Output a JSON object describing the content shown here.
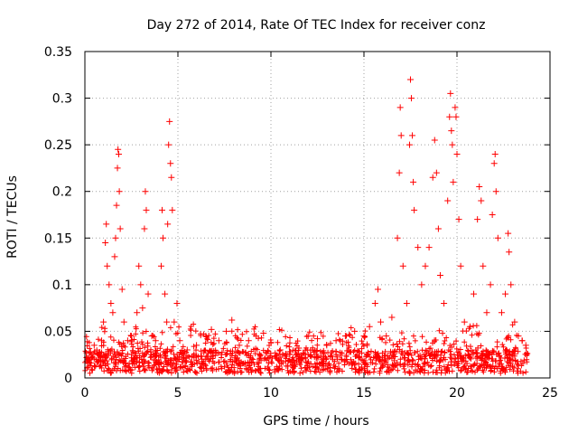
{
  "chart_data": {
    "type": "scatter",
    "title": "Day 272 of 2014, Rate Of TEC Index for receiver conz",
    "xlabel": "GPS time / hours",
    "ylabel": "ROTI / TECUs",
    "xlim": [
      0,
      25
    ],
    "ylim": [
      0,
      0.35
    ],
    "x_ticks": [
      "0",
      "5",
      "10",
      "15",
      "20",
      "25"
    ],
    "y_ticks": [
      "0",
      "0.05",
      "0.1",
      "0.15",
      "0.2",
      "0.25",
      "0.3",
      "0.35"
    ],
    "x_tick_values": [
      0,
      5,
      10,
      15,
      20,
      25
    ],
    "y_tick_values": [
      0,
      0.05,
      0.1,
      0.15,
      0.2,
      0.25,
      0.3,
      0.35
    ],
    "grid": true,
    "marker": "+",
    "color": "#ff0000",
    "series": [
      {
        "points": [
          [
            0.1,
            0.018
          ],
          [
            0.3,
            0.028
          ],
          [
            0.5,
            0.035
          ],
          [
            0.7,
            0.025
          ],
          [
            0.9,
            0.04
          ],
          [
            1.0,
            0.06
          ],
          [
            1.1,
            0.145
          ],
          [
            1.15,
            0.165
          ],
          [
            1.2,
            0.12
          ],
          [
            1.3,
            0.1
          ],
          [
            1.4,
            0.08
          ],
          [
            1.5,
            0.07
          ],
          [
            1.6,
            0.13
          ],
          [
            1.65,
            0.15
          ],
          [
            1.7,
            0.185
          ],
          [
            1.75,
            0.225
          ],
          [
            1.78,
            0.245
          ],
          [
            1.82,
            0.24
          ],
          [
            1.85,
            0.2
          ],
          [
            1.9,
            0.16
          ],
          [
            2.0,
            0.095
          ],
          [
            2.1,
            0.06
          ],
          [
            2.3,
            0.04
          ],
          [
            2.5,
            0.045
          ],
          [
            2.8,
            0.07
          ],
          [
            2.9,
            0.12
          ],
          [
            3.0,
            0.1
          ],
          [
            3.1,
            0.075
          ],
          [
            3.2,
            0.16
          ],
          [
            3.25,
            0.2
          ],
          [
            3.3,
            0.18
          ],
          [
            3.4,
            0.09
          ],
          [
            3.6,
            0.045
          ],
          [
            3.8,
            0.04
          ],
          [
            4.1,
            0.12
          ],
          [
            4.15,
            0.18
          ],
          [
            4.2,
            0.15
          ],
          [
            4.3,
            0.09
          ],
          [
            4.4,
            0.06
          ],
          [
            4.45,
            0.165
          ],
          [
            4.5,
            0.25
          ],
          [
            4.55,
            0.275
          ],
          [
            4.6,
            0.23
          ],
          [
            4.65,
            0.215
          ],
          [
            4.7,
            0.18
          ],
          [
            4.8,
            0.06
          ],
          [
            4.95,
            0.08
          ],
          [
            5.1,
            0.04
          ],
          [
            5.5,
            0.03
          ],
          [
            6.0,
            0.035
          ],
          [
            6.5,
            0.045
          ],
          [
            6.8,
            0.052
          ],
          [
            7.2,
            0.04
          ],
          [
            7.6,
            0.05
          ],
          [
            7.9,
            0.062
          ],
          [
            8.3,
            0.035
          ],
          [
            8.8,
            0.04
          ],
          [
            9.2,
            0.045
          ],
          [
            9.6,
            0.048
          ],
          [
            10.0,
            0.038
          ],
          [
            10.5,
            0.03
          ],
          [
            11.0,
            0.028
          ],
          [
            11.5,
            0.032
          ],
          [
            12.0,
            0.045
          ],
          [
            12.5,
            0.042
          ],
          [
            13.0,
            0.035
          ],
          [
            13.5,
            0.04
          ],
          [
            14.0,
            0.045
          ],
          [
            14.5,
            0.05
          ],
          [
            15.0,
            0.045
          ],
          [
            15.3,
            0.055
          ],
          [
            15.6,
            0.08
          ],
          [
            15.75,
            0.095
          ],
          [
            15.9,
            0.06
          ],
          [
            16.2,
            0.045
          ],
          [
            16.5,
            0.065
          ],
          [
            16.8,
            0.15
          ],
          [
            16.9,
            0.22
          ],
          [
            16.95,
            0.29
          ],
          [
            17.0,
            0.26
          ],
          [
            17.1,
            0.12
          ],
          [
            17.3,
            0.08
          ],
          [
            17.45,
            0.25
          ],
          [
            17.5,
            0.32
          ],
          [
            17.55,
            0.3
          ],
          [
            17.6,
            0.26
          ],
          [
            17.65,
            0.21
          ],
          [
            17.7,
            0.18
          ],
          [
            17.9,
            0.14
          ],
          [
            18.1,
            0.1
          ],
          [
            18.3,
            0.12
          ],
          [
            18.5,
            0.14
          ],
          [
            18.7,
            0.215
          ],
          [
            18.8,
            0.255
          ],
          [
            18.9,
            0.22
          ],
          [
            19.0,
            0.16
          ],
          [
            19.1,
            0.11
          ],
          [
            19.3,
            0.08
          ],
          [
            19.5,
            0.19
          ],
          [
            19.6,
            0.28
          ],
          [
            19.65,
            0.305
          ],
          [
            19.7,
            0.265
          ],
          [
            19.75,
            0.25
          ],
          [
            19.8,
            0.21
          ],
          [
            19.9,
            0.29
          ],
          [
            19.95,
            0.28
          ],
          [
            20.0,
            0.24
          ],
          [
            20.1,
            0.17
          ],
          [
            20.2,
            0.12
          ],
          [
            20.4,
            0.06
          ],
          [
            20.7,
            0.055
          ],
          [
            20.9,
            0.09
          ],
          [
            21.1,
            0.17
          ],
          [
            21.2,
            0.205
          ],
          [
            21.3,
            0.19
          ],
          [
            21.4,
            0.12
          ],
          [
            21.6,
            0.07
          ],
          [
            21.8,
            0.1
          ],
          [
            21.9,
            0.175
          ],
          [
            22.0,
            0.23
          ],
          [
            22.05,
            0.24
          ],
          [
            22.1,
            0.2
          ],
          [
            22.2,
            0.15
          ],
          [
            22.4,
            0.07
          ],
          [
            22.6,
            0.09
          ],
          [
            22.75,
            0.155
          ],
          [
            22.8,
            0.135
          ],
          [
            22.9,
            0.1
          ],
          [
            23.1,
            0.06
          ],
          [
            23.3,
            0.045
          ],
          [
            23.5,
            0.04
          ],
          [
            23.7,
            0.035
          ]
        ]
      }
    ]
  }
}
